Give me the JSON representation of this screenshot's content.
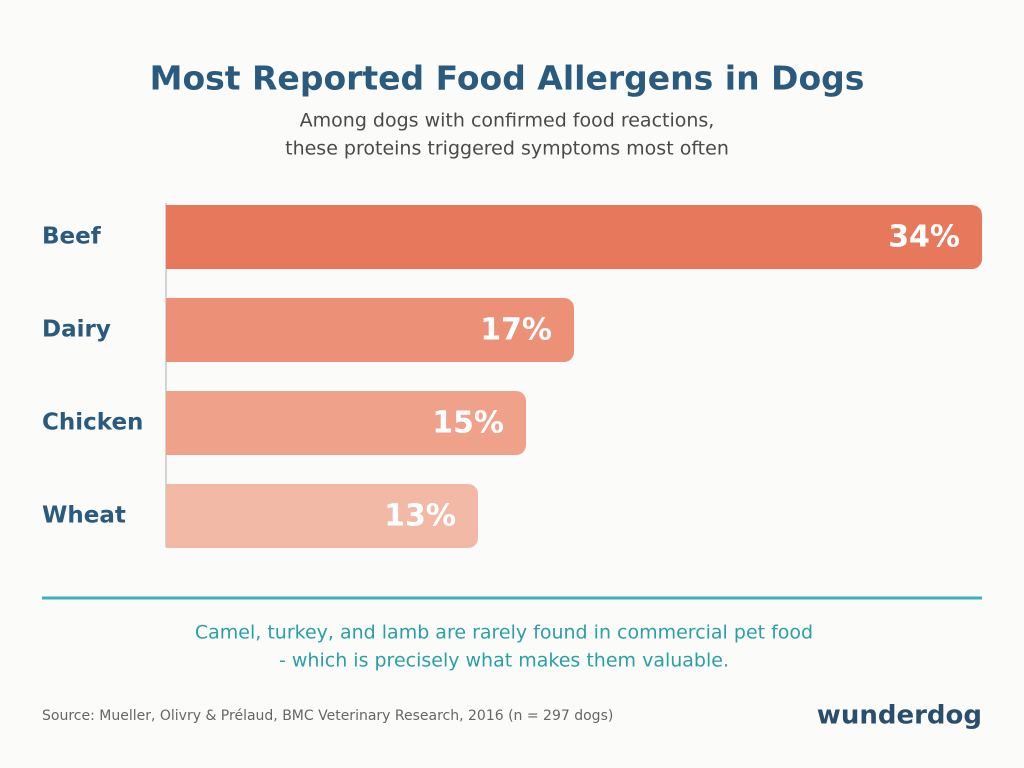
{
  "chart_data": {
    "type": "hbar",
    "title": "Most Reported Food Allergens in Dogs",
    "subtitle": [
      "Among dogs with confirmed food reactions,",
      "these proteins triggered symptoms most often"
    ],
    "categories": [
      "Beef",
      "Dairy",
      "Chicken",
      "Wheat"
    ],
    "values": [
      34,
      17,
      15,
      13
    ],
    "value_labels": [
      "34%",
      "17%",
      "15%",
      "13%"
    ],
    "colors": [
      "#e8785c",
      "#ec9178",
      "#efa18a",
      "#f3b9a7"
    ],
    "note": [
      "Camel, turkey, and lamb are rarely found in commercial pet food",
      "- which is precisely what makes them valuable."
    ],
    "source": "Source: Mueller, Olivry & Prélaud, BMC Veterinary Research, 2016 (n = 297 dogs)",
    "brand": "wunderdog"
  }
}
